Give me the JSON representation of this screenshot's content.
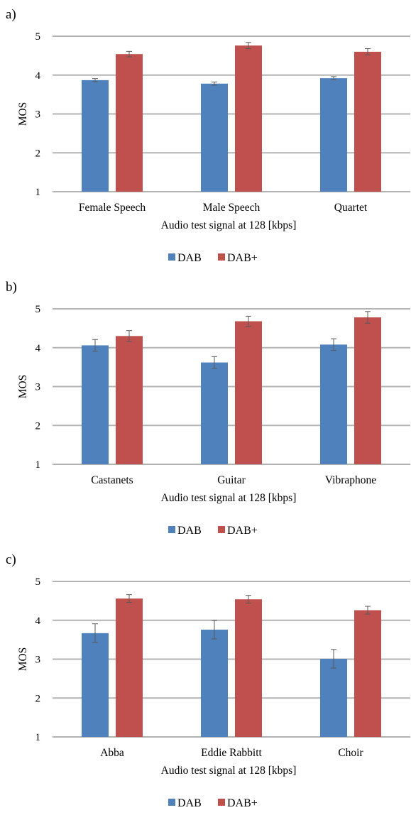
{
  "colors": {
    "DAB": "#4f81bd",
    "DAB+": "#c0504d",
    "grid": "#b3b3b3",
    "errorbar": "#595959"
  },
  "chart_data": [
    {
      "type": "bar",
      "panel_label": "a)",
      "categories": [
        "Female Speech",
        "Male Speech",
        "Quartet"
      ],
      "series": [
        {
          "name": "DAB",
          "values": [
            3.87,
            3.78,
            3.92
          ],
          "errors": [
            0.04,
            0.04,
            0.04
          ]
        },
        {
          "name": "DAB+",
          "values": [
            4.54,
            4.76,
            4.6
          ],
          "errors": [
            0.07,
            0.08,
            0.08
          ]
        }
      ],
      "xlabel": "Audio test signal at 128 [kbps]",
      "ylabel": "MOS",
      "ylim": [
        1,
        5
      ],
      "yticks": [
        "1",
        "2",
        "3",
        "4",
        "5"
      ],
      "grid": true,
      "legend": "bottom-center"
    },
    {
      "type": "bar",
      "panel_label": "b)",
      "categories": [
        "Castanets",
        "Guitar",
        "Vibraphone"
      ],
      "series": [
        {
          "name": "DAB",
          "values": [
            4.06,
            3.62,
            4.08
          ],
          "errors": [
            0.15,
            0.15,
            0.15
          ]
        },
        {
          "name": "DAB+",
          "values": [
            4.3,
            4.68,
            4.78
          ],
          "errors": [
            0.14,
            0.13,
            0.15
          ]
        }
      ],
      "xlabel": "Audio test signal at 128 [kbps]",
      "ylabel": "MOS",
      "ylim": [
        1,
        5
      ],
      "yticks": [
        "1",
        "2",
        "3",
        "4",
        "5"
      ],
      "grid": true,
      "legend": "bottom-center"
    },
    {
      "type": "bar",
      "panel_label": "c)",
      "categories": [
        "Abba",
        "Eddie Rabbitt",
        "Choir"
      ],
      "series": [
        {
          "name": "DAB",
          "values": [
            3.67,
            3.76,
            3.01
          ],
          "errors": [
            0.24,
            0.24,
            0.24
          ]
        },
        {
          "name": "DAB+",
          "values": [
            4.56,
            4.54,
            4.26
          ],
          "errors": [
            0.1,
            0.1,
            0.1
          ]
        }
      ],
      "xlabel": "Audio test signal at 128 [kbps]",
      "ylabel": "MOS",
      "ylim": [
        1,
        5
      ],
      "yticks": [
        "1",
        "2",
        "3",
        "4",
        "5"
      ],
      "grid": true,
      "legend": "bottom-center"
    }
  ]
}
